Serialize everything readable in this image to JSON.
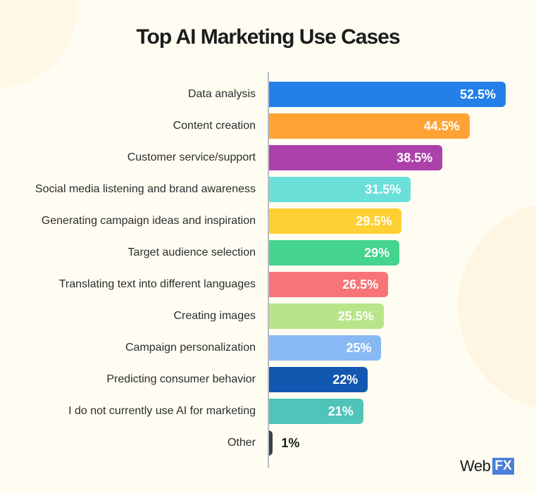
{
  "title": "Top AI Marketing Use Cases",
  "brand": {
    "word": "Web",
    "box": "FX"
  },
  "chart_data": {
    "type": "bar",
    "orientation": "horizontal",
    "title": "Top AI Marketing Use Cases",
    "xlabel": "",
    "ylabel": "",
    "grid": false,
    "legend": null,
    "categories": [
      "Data analysis",
      "Content creation",
      "Customer service/support",
      "Social media listening and brand awareness",
      "Generating campaign ideas and inspiration",
      "Target audience selection",
      "Translating text into different languages",
      "Creating images",
      "Campaign personalization",
      "Predicting consumer behavior",
      "I do not currently use AI for marketing",
      "Other"
    ],
    "values": [
      52.5,
      44.5,
      38.5,
      31.5,
      29.5,
      29,
      26.5,
      25.5,
      25,
      22,
      21,
      1
    ],
    "value_labels": [
      "52.5%",
      "44.5%",
      "38.5%",
      "31.5%",
      "29.5%",
      "29%",
      "26.5%",
      "25.5%",
      "25%",
      "22%",
      "21%",
      "1%"
    ],
    "colors": [
      "#2480e8",
      "#ffa334",
      "#ad41ac",
      "#6be0d9",
      "#ffd034",
      "#44d48e",
      "#f87477",
      "#b9e58a",
      "#89b9f4",
      "#1358b0",
      "#50c4b9",
      "#3a3e45"
    ],
    "unit": "%"
  }
}
